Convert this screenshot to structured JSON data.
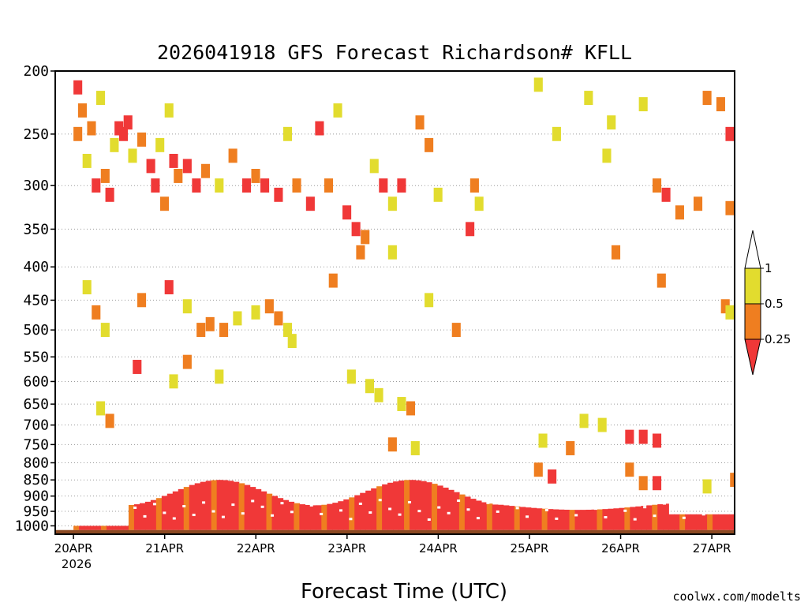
{
  "chart_data": {
    "type": "heatmap",
    "title": "2026041918 GFS Forecast Richardson# KFLL",
    "xlabel": "Forecast Time (UTC)",
    "ylabel": "",
    "credit": "coolwx.com/modelts",
    "x_tick_labels": [
      "20APR",
      "21APR",
      "22APR",
      "23APR",
      "24APR",
      "25APR",
      "26APR",
      "27APR"
    ],
    "x_tick_values": [
      0,
      1,
      2,
      3,
      4,
      5,
      6,
      7
    ],
    "x_sub_label": "2026",
    "xlim": [
      -0.2,
      7.25
    ],
    "ylim": [
      1030,
      200
    ],
    "y_tick_labels": [
      "200",
      "250",
      "300",
      "350",
      "400",
      "450",
      "500",
      "550",
      "600",
      "650",
      "700",
      "750",
      "800",
      "850",
      "900",
      "950",
      "1000"
    ],
    "y_tick_values": [
      200,
      250,
      300,
      350,
      400,
      450,
      500,
      550,
      600,
      650,
      700,
      750,
      800,
      850,
      900,
      950,
      1000
    ],
    "y_scale": "log",
    "grid": "dotted horizontal",
    "ground_pressure": 1015,
    "ground_color": "#8b4a23",
    "legend": {
      "placement": "right",
      "labels": [
        "1",
        "0.5",
        "0.25"
      ],
      "bins": [
        {
          "range": "0.5-1",
          "color": "#e2dc2e"
        },
        {
          "range": "0.25-0.5",
          "color": "#ef7e20"
        },
        {
          "range": "<0.25",
          "color": "#f03838"
        }
      ]
    },
    "colors": {
      "y": "#e2dc2e",
      "o": "#ef7e20",
      "r": "#f03838"
    },
    "cells": [
      {
        "x": 0.0,
        "p": 212,
        "c": "r"
      },
      {
        "x": 0.0,
        "p": 250,
        "c": "o"
      },
      {
        "x": 0.05,
        "p": 230,
        "c": "o"
      },
      {
        "x": 0.1,
        "p": 275,
        "c": "y"
      },
      {
        "x": 0.15,
        "p": 245,
        "c": "o"
      },
      {
        "x": 0.2,
        "p": 300,
        "c": "r"
      },
      {
        "x": 0.25,
        "p": 220,
        "c": "y"
      },
      {
        "x": 0.3,
        "p": 290,
        "c": "o"
      },
      {
        "x": 0.35,
        "p": 310,
        "c": "r"
      },
      {
        "x": 0.4,
        "p": 260,
        "c": "y"
      },
      {
        "x": 0.45,
        "p": 245,
        "c": "r"
      },
      {
        "x": 0.5,
        "p": 250,
        "c": "r"
      },
      {
        "x": 0.55,
        "p": 240,
        "c": "r"
      },
      {
        "x": 0.6,
        "p": 270,
        "c": "y"
      },
      {
        "x": 0.7,
        "p": 255,
        "c": "o"
      },
      {
        "x": 0.8,
        "p": 280,
        "c": "r"
      },
      {
        "x": 0.85,
        "p": 300,
        "c": "r"
      },
      {
        "x": 0.9,
        "p": 260,
        "c": "y"
      },
      {
        "x": 1.0,
        "p": 230,
        "c": "y"
      },
      {
        "x": 1.05,
        "p": 275,
        "c": "r"
      },
      {
        "x": 1.1,
        "p": 290,
        "c": "o"
      },
      {
        "x": 1.2,
        "p": 280,
        "c": "r"
      },
      {
        "x": 1.3,
        "p": 300,
        "c": "r"
      },
      {
        "x": 1.4,
        "p": 285,
        "c": "o"
      },
      {
        "x": 1.55,
        "p": 300,
        "c": "y"
      },
      {
        "x": 1.7,
        "p": 270,
        "c": "o"
      },
      {
        "x": 1.85,
        "p": 300,
        "c": "r"
      },
      {
        "x": 1.95,
        "p": 290,
        "c": "o"
      },
      {
        "x": 2.05,
        "p": 300,
        "c": "r"
      },
      {
        "x": 2.2,
        "p": 310,
        "c": "r"
      },
      {
        "x": 2.3,
        "p": 250,
        "c": "y"
      },
      {
        "x": 2.4,
        "p": 300,
        "c": "o"
      },
      {
        "x": 2.55,
        "p": 320,
        "c": "r"
      },
      {
        "x": 2.65,
        "p": 245,
        "c": "r"
      },
      {
        "x": 2.75,
        "p": 300,
        "c": "o"
      },
      {
        "x": 2.85,
        "p": 230,
        "c": "y"
      },
      {
        "x": 2.95,
        "p": 330,
        "c": "r"
      },
      {
        "x": 3.05,
        "p": 350,
        "c": "r"
      },
      {
        "x": 3.15,
        "p": 360,
        "c": "o"
      },
      {
        "x": 3.25,
        "p": 280,
        "c": "y"
      },
      {
        "x": 3.35,
        "p": 300,
        "c": "r"
      },
      {
        "x": 3.45,
        "p": 320,
        "c": "y"
      },
      {
        "x": 3.55,
        "p": 300,
        "c": "r"
      },
      {
        "x": 3.75,
        "p": 240,
        "c": "o"
      },
      {
        "x": 3.85,
        "p": 260,
        "c": "o"
      },
      {
        "x": 3.95,
        "p": 310,
        "c": "y"
      },
      {
        "x": 4.3,
        "p": 350,
        "c": "r"
      },
      {
        "x": 4.35,
        "p": 300,
        "c": "o"
      },
      {
        "x": 4.4,
        "p": 320,
        "c": "y"
      },
      {
        "x": 5.05,
        "p": 210,
        "c": "y"
      },
      {
        "x": 5.25,
        "p": 250,
        "c": "y"
      },
      {
        "x": 5.6,
        "p": 220,
        "c": "y"
      },
      {
        "x": 5.8,
        "p": 270,
        "c": "y"
      },
      {
        "x": 5.9,
        "p": 380,
        "c": "o"
      },
      {
        "x": 6.2,
        "p": 225,
        "c": "y"
      },
      {
        "x": 6.35,
        "p": 300,
        "c": "o"
      },
      {
        "x": 6.45,
        "p": 310,
        "c": "r"
      },
      {
        "x": 6.6,
        "p": 330,
        "c": "o"
      },
      {
        "x": 6.8,
        "p": 320,
        "c": "o"
      },
      {
        "x": 6.9,
        "p": 220,
        "c": "o"
      },
      {
        "x": 7.05,
        "p": 225,
        "c": "o"
      },
      {
        "x": 7.15,
        "p": 250,
        "c": "r"
      },
      {
        "x": 7.15,
        "p": 325,
        "c": "o"
      },
      {
        "x": 0.1,
        "p": 430,
        "c": "y"
      },
      {
        "x": 0.2,
        "p": 470,
        "c": "o"
      },
      {
        "x": 0.3,
        "p": 500,
        "c": "y"
      },
      {
        "x": 0.7,
        "p": 450,
        "c": "o"
      },
      {
        "x": 0.65,
        "p": 570,
        "c": "r"
      },
      {
        "x": 0.95,
        "p": 320,
        "c": "o"
      },
      {
        "x": 1.0,
        "p": 430,
        "c": "r"
      },
      {
        "x": 1.2,
        "p": 460,
        "c": "y"
      },
      {
        "x": 1.2,
        "p": 560,
        "c": "o"
      },
      {
        "x": 1.35,
        "p": 500,
        "c": "o"
      },
      {
        "x": 1.45,
        "p": 490,
        "c": "o"
      },
      {
        "x": 1.6,
        "p": 500,
        "c": "o"
      },
      {
        "x": 1.75,
        "p": 480,
        "c": "y"
      },
      {
        "x": 1.95,
        "p": 470,
        "c": "y"
      },
      {
        "x": 2.1,
        "p": 460,
        "c": "o"
      },
      {
        "x": 2.2,
        "p": 480,
        "c": "o"
      },
      {
        "x": 2.3,
        "p": 500,
        "c": "y"
      },
      {
        "x": 2.35,
        "p": 520,
        "c": "y"
      },
      {
        "x": 2.8,
        "p": 420,
        "c": "o"
      },
      {
        "x": 3.1,
        "p": 380,
        "c": "o"
      },
      {
        "x": 3.45,
        "p": 380,
        "c": "y"
      },
      {
        "x": 3.0,
        "p": 590,
        "c": "y"
      },
      {
        "x": 3.2,
        "p": 610,
        "c": "y"
      },
      {
        "x": 3.55,
        "p": 650,
        "c": "y"
      },
      {
        "x": 3.65,
        "p": 660,
        "c": "o"
      },
      {
        "x": 3.45,
        "p": 750,
        "c": "o"
      },
      {
        "x": 3.7,
        "p": 760,
        "c": "y"
      },
      {
        "x": 3.3,
        "p": 630,
        "c": "y"
      },
      {
        "x": 4.15,
        "p": 500,
        "c": "o"
      },
      {
        "x": 3.85,
        "p": 450,
        "c": "y"
      },
      {
        "x": 0.25,
        "p": 660,
        "c": "y"
      },
      {
        "x": 0.35,
        "p": 690,
        "c": "o"
      },
      {
        "x": 1.05,
        "p": 600,
        "c": "y"
      },
      {
        "x": 1.55,
        "p": 590,
        "c": "y"
      },
      {
        "x": 6.05,
        "p": 730,
        "c": "r"
      },
      {
        "x": 6.2,
        "p": 730,
        "c": "r"
      },
      {
        "x": 6.35,
        "p": 740,
        "c": "r"
      },
      {
        "x": 6.05,
        "p": 820,
        "c": "o"
      },
      {
        "x": 6.2,
        "p": 860,
        "c": "o"
      },
      {
        "x": 6.35,
        "p": 860,
        "c": "r"
      },
      {
        "x": 5.05,
        "p": 820,
        "c": "o"
      },
      {
        "x": 5.2,
        "p": 840,
        "c": "r"
      },
      {
        "x": 5.4,
        "p": 760,
        "c": "o"
      },
      {
        "x": 5.1,
        "p": 740,
        "c": "y"
      },
      {
        "x": 5.55,
        "p": 690,
        "c": "y"
      },
      {
        "x": 5.75,
        "p": 700,
        "c": "y"
      },
      {
        "x": 6.4,
        "p": 420,
        "c": "o"
      },
      {
        "x": 7.1,
        "p": 460,
        "c": "o"
      },
      {
        "x": 7.2,
        "p": 850,
        "c": "o"
      },
      {
        "x": 6.9,
        "p": 870,
        "c": "y"
      },
      {
        "x": 7.15,
        "p": 470,
        "c": "y"
      },
      {
        "x": 5.85,
        "p": 240,
        "c": "y"
      }
    ]
  }
}
